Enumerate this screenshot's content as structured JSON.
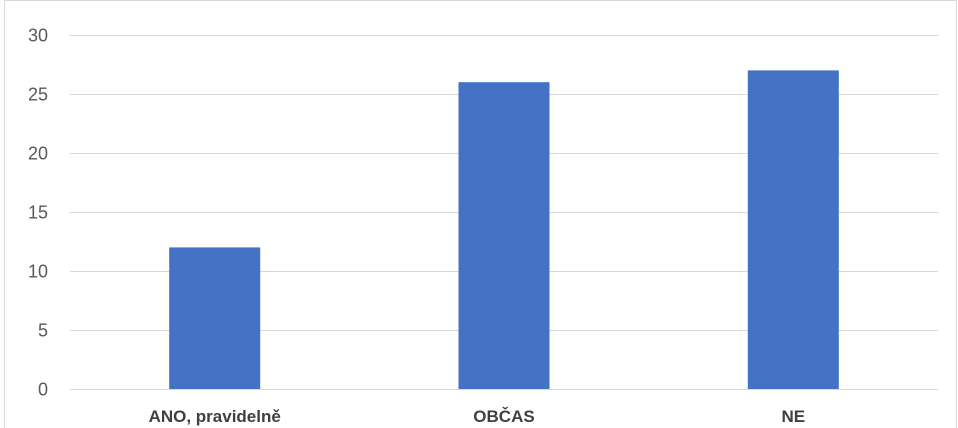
{
  "chart_data": {
    "type": "bar",
    "title": "",
    "xlabel": "",
    "ylabel": "",
    "categories": [
      "ANO, pravidelně",
      "OBČAS",
      "NE"
    ],
    "values": [
      12,
      26,
      27
    ],
    "ylim": [
      0,
      30
    ],
    "yticks": [
      0,
      5,
      10,
      15,
      20,
      25,
      30
    ],
    "ytick_labels": [
      "0",
      "5",
      "10",
      "15",
      "20",
      "25",
      "30"
    ],
    "grid": true,
    "legend": "none",
    "bar_color": "#4472C4",
    "grid_color": "#d9d9d9",
    "tick_label_color": "#595959",
    "category_label_color": "#404040"
  }
}
